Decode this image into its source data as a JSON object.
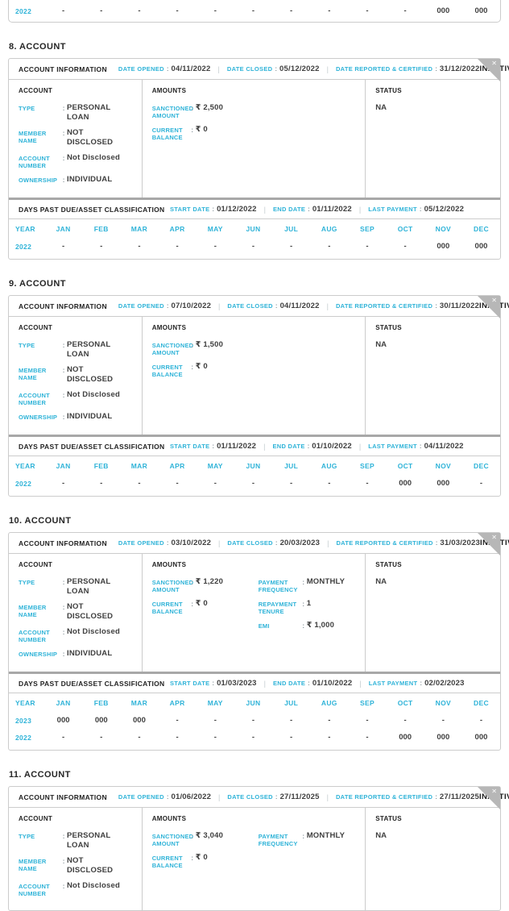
{
  "theme": {
    "accent": "#2fb3d8",
    "heading_text": "#272727",
    "value_text": "#3f3f3f",
    "card_border": "#cccccc",
    "thick_divider": "#a8a8a8",
    "fold_gray": "#b7b7b7"
  },
  "labels": {
    "account_information": "ACCOUNT INFORMATION",
    "date_opened": "DATE OPENED",
    "date_closed": "DATE CLOSED",
    "date_reported": "DATE REPORTED & CERTIFIED",
    "account": "ACCOUNT",
    "amounts": "AMOUNTS",
    "status": "STATUS",
    "dpd_title": "DAYS PAST DUE/ASSET CLASSIFICATION",
    "start_date": "START DATE",
    "end_date": "END DATE",
    "last_payment": "LAST PAYMENT",
    "year": "YEAR",
    "months": [
      "JAN",
      "FEB",
      "MAR",
      "APR",
      "MAY",
      "JUN",
      "JUL",
      "AUG",
      "SEP",
      "OCT",
      "NOV",
      "DEC"
    ],
    "close_glyph": "✕"
  },
  "top_partial_row": {
    "year": "2022",
    "values": [
      "-",
      "-",
      "-",
      "-",
      "-",
      "-",
      "-",
      "-",
      "-",
      "-",
      "000",
      "000"
    ]
  },
  "accounts": [
    {
      "section_title": "8. ACCOUNT",
      "date_opened": "04/11/2022",
      "date_closed": "05/12/2022",
      "date_reported": "31/12/2022",
      "status_badge": "INACTIVE",
      "account_fields": [
        {
          "label": "TYPE",
          "value": "PERSONAL LOAN"
        },
        {
          "label": "MEMBER NAME",
          "value": "NOT DISCLOSED"
        },
        {
          "label": "ACCOUNT NUMBER",
          "value": "Not Disclosed"
        },
        {
          "label": "OWNERSHIP",
          "value": "INDIVIDUAL"
        }
      ],
      "amounts_col1": [
        {
          "label": "SANCTIONED AMOUNT",
          "value": "₹ 2,500"
        },
        {
          "label": "CURRENT BALANCE",
          "value": "₹ 0"
        }
      ],
      "amounts_col2": [],
      "status": "NA",
      "dpd": {
        "start_date": "01/12/2022",
        "end_date": "01/11/2022",
        "last_payment": "05/12/2022",
        "rows": [
          {
            "year": "2022",
            "values": [
              "-",
              "-",
              "-",
              "-",
              "-",
              "-",
              "-",
              "-",
              "-",
              "-",
              "000",
              "000"
            ]
          }
        ]
      }
    },
    {
      "section_title": "9. ACCOUNT",
      "date_opened": "07/10/2022",
      "date_closed": "04/11/2022",
      "date_reported": "30/11/2022",
      "status_badge": "INACTIVE",
      "account_fields": [
        {
          "label": "TYPE",
          "value": "PERSONAL LOAN"
        },
        {
          "label": "MEMBER NAME",
          "value": "NOT DISCLOSED"
        },
        {
          "label": "ACCOUNT NUMBER",
          "value": "Not Disclosed"
        },
        {
          "label": "OWNERSHIP",
          "value": "INDIVIDUAL"
        }
      ],
      "amounts_col1": [
        {
          "label": "SANCTIONED AMOUNT",
          "value": "₹ 1,500"
        },
        {
          "label": "CURRENT BALANCE",
          "value": "₹ 0"
        }
      ],
      "amounts_col2": [],
      "status": "NA",
      "dpd": {
        "start_date": "01/11/2022",
        "end_date": "01/10/2022",
        "last_payment": "04/11/2022",
        "rows": [
          {
            "year": "2022",
            "values": [
              "-",
              "-",
              "-",
              "-",
              "-",
              "-",
              "-",
              "-",
              "-",
              "000",
              "000",
              "-"
            ]
          }
        ]
      }
    },
    {
      "section_title": "10. ACCOUNT",
      "date_opened": "03/10/2022",
      "date_closed": "20/03/2023",
      "date_reported": "31/03/2023",
      "status_badge": "INACTIVE",
      "account_fields": [
        {
          "label": "TYPE",
          "value": "PERSONAL LOAN"
        },
        {
          "label": "MEMBER NAME",
          "value": "NOT DISCLOSED"
        },
        {
          "label": "ACCOUNT NUMBER",
          "value": "Not Disclosed"
        },
        {
          "label": "OWNERSHIP",
          "value": "INDIVIDUAL"
        }
      ],
      "amounts_col1": [
        {
          "label": "SANCTIONED AMOUNT",
          "value": "₹ 1,220"
        },
        {
          "label": "CURRENT BALANCE",
          "value": "₹ 0"
        }
      ],
      "amounts_col2": [
        {
          "label": "PAYMENT FREQUENCY",
          "value": "MONTHLY"
        },
        {
          "label": "REPAYMENT TENURE",
          "value": "1"
        },
        {
          "label": "EMI",
          "value": "₹ 1,000"
        }
      ],
      "status": "NA",
      "dpd": {
        "start_date": "01/03/2023",
        "end_date": "01/10/2022",
        "last_payment": "02/02/2023",
        "rows": [
          {
            "year": "2023",
            "values": [
              "000",
              "000",
              "000",
              "-",
              "-",
              "-",
              "-",
              "-",
              "-",
              "-",
              "-",
              "-"
            ]
          },
          {
            "year": "2022",
            "values": [
              "-",
              "-",
              "-",
              "-",
              "-",
              "-",
              "-",
              "-",
              "-",
              "000",
              "000",
              "000"
            ]
          }
        ]
      }
    },
    {
      "section_title": "11. ACCOUNT",
      "date_opened": "01/06/2022",
      "date_closed": "27/11/2025",
      "date_reported": "27/11/2025",
      "status_badge": "INACTIVE",
      "account_fields": [
        {
          "label": "TYPE",
          "value": "PERSONAL LOAN"
        },
        {
          "label": "MEMBER NAME",
          "value": "NOT DISCLOSED"
        },
        {
          "label": "ACCOUNT NUMBER",
          "value": "Not Disclosed"
        }
      ],
      "amounts_col1": [
        {
          "label": "SANCTIONED AMOUNT",
          "value": "₹ 3,040"
        },
        {
          "label": "CURRENT BALANCE",
          "value": "₹ 0"
        }
      ],
      "amounts_col2": [
        {
          "label": "PAYMENT FREQUENCY",
          "value": "MONTHLY"
        }
      ],
      "status": "NA"
    }
  ]
}
